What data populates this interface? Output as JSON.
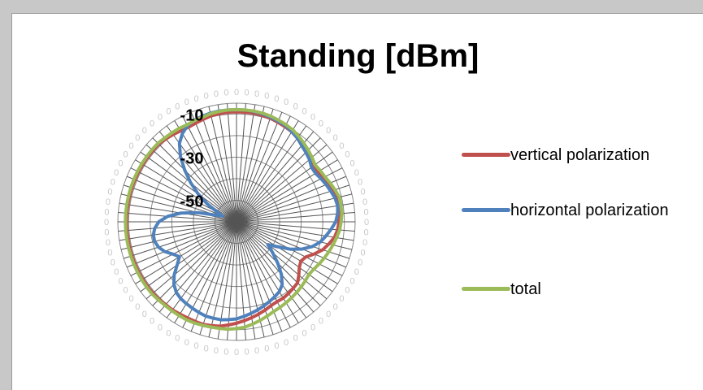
{
  "chart_data": {
    "type": "radar",
    "title": "Standing [dBm]",
    "radial_ticks": [
      "-10",
      "-30",
      "-50"
    ],
    "radial_range": [
      -60,
      -5
    ],
    "angle_labels": [
      "0",
      "0",
      "0",
      "0",
      "0",
      "0",
      "0",
      "0",
      "0",
      "0",
      "0",
      "0",
      "0",
      "0",
      "0",
      "0",
      "0",
      "0",
      "0",
      "0",
      "0",
      "0",
      "0",
      "0",
      "0",
      "0",
      "0",
      "0",
      "0",
      "0",
      "0",
      "0",
      "0",
      "0",
      "0",
      "0",
      "0",
      "0",
      "0",
      "0",
      "0",
      "0",
      "0",
      "0",
      "0",
      "0",
      "0",
      "0",
      "0",
      "0",
      "0",
      "0",
      "0",
      "0",
      "0",
      "0",
      "0",
      "0",
      "0",
      "0",
      "0",
      "0",
      "0",
      "0",
      "0",
      "0",
      "0",
      "0",
      "0",
      "0",
      "0",
      "0",
      "0",
      "0",
      "0",
      "0",
      "0",
      "0",
      "0",
      "0"
    ],
    "series": [
      {
        "name": "vertical polarization",
        "color": "#c0504d",
        "values": [
          -9,
          -9,
          -9,
          -9.2,
          -9.5,
          -10,
          -10.5,
          -11,
          -12,
          -13,
          -14,
          -15.5,
          -16.5,
          -16,
          -15,
          -14,
          -13,
          -12,
          -12,
          -12,
          -12.5,
          -13,
          -14,
          -16,
          -18,
          -21,
          -24,
          -25,
          -24,
          -22,
          -20,
          -19.5,
          -19,
          -18.5,
          -18.5,
          -18,
          -17,
          -16,
          -15,
          -14,
          -13,
          -12,
          -11,
          -10.5,
          -10,
          -10,
          -10,
          -9.8,
          -9.5,
          -9.5,
          -9.2,
          -9,
          -9,
          -9,
          -9,
          -9,
          -9,
          -9,
          -9,
          -9,
          -9,
          -9,
          -9,
          -9,
          -9,
          -9,
          -9,
          -9,
          -9,
          -9,
          -9,
          -9.5,
          -10,
          -10.5,
          -10.8,
          -10.5,
          -10,
          -9.5,
          -9.2,
          -9
        ]
      },
      {
        "name": "horizontal polarization",
        "color": "#4f81bd",
        "values": [
          -8,
          -8,
          -8.2,
          -8.5,
          -9,
          -9.5,
          -10,
          -11,
          -12,
          -13.5,
          -14.5,
          -15.5,
          -17,
          -17,
          -16,
          -15,
          -14,
          -13,
          -12.5,
          -13,
          -14,
          -16,
          -18,
          -20,
          -23,
          -27,
          -32,
          -38,
          -42,
          -38,
          -33,
          -28,
          -24,
          -22,
          -21,
          -20,
          -19,
          -18,
          -17,
          -16,
          -15,
          -14.5,
          -14,
          -14,
          -14,
          -14.5,
          -15,
          -15.5,
          -16,
          -17,
          -19,
          -22,
          -26,
          -29,
          -27,
          -24,
          -22,
          -21,
          -21,
          -22,
          -24,
          -28,
          -34,
          -42,
          -50,
          -53,
          -50,
          -44,
          -38,
          -32,
          -26,
          -20,
          -15,
          -12,
          -10,
          -9,
          -8.5,
          -8.2,
          -8,
          -8
        ]
      },
      {
        "name": "total",
        "color": "#9bbb59",
        "values": [
          -8,
          -8,
          -8,
          -8.2,
          -8.5,
          -9,
          -9.5,
          -10,
          -11,
          -12,
          -13,
          -14,
          -15,
          -14.5,
          -14,
          -13,
          -12,
          -11,
          -11,
          -11,
          -11.5,
          -12,
          -13,
          -14,
          -15,
          -16,
          -17,
          -18,
          -18.5,
          -18,
          -17.5,
          -17,
          -16.5,
          -16,
          -15.5,
          -15,
          -14,
          -13,
          -12,
          -11,
          -10.5,
          -10,
          -10,
          -9.8,
          -9.5,
          -9.2,
          -9,
          -9,
          -9,
          -9,
          -8.8,
          -8.5,
          -8.5,
          -8.5,
          -8.5,
          -8.5,
          -8.5,
          -8.5,
          -8.5,
          -8.5,
          -8.5,
          -8.5,
          -8.5,
          -8.5,
          -8.5,
          -8.5,
          -8.5,
          -8.5,
          -8.5,
          -8.5,
          -8.5,
          -8.8,
          -9,
          -9.2,
          -9.5,
          -9.2,
          -9,
          -8.5,
          -8.2,
          -8
        ]
      }
    ],
    "legend_position": "right",
    "grid": true
  }
}
